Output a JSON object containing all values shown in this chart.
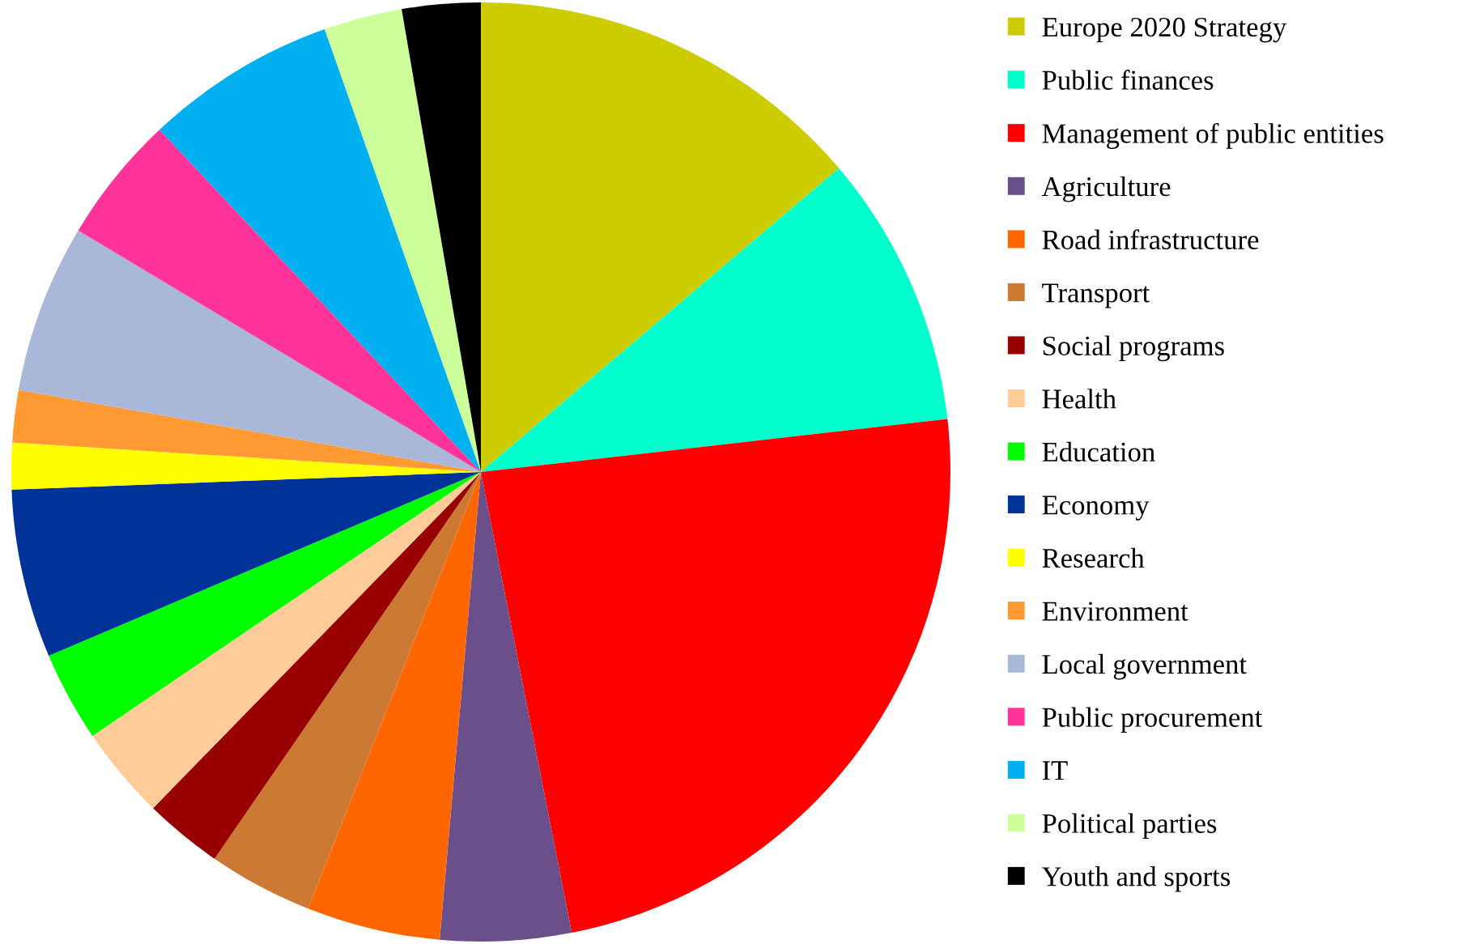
{
  "chart_data": {
    "type": "pie",
    "categories": [
      "Europe 2020 Strategy",
      "Public finances",
      "Management of public entities",
      "Agriculture",
      "Road infrastructure",
      "Transport",
      "Social programs",
      "Health",
      "Education",
      "Economy",
      "Research",
      "Environment",
      "Local government",
      "Public procurement",
      "IT",
      "Political parties",
      "Youth and sports"
    ],
    "values": [
      13.8,
      9.4,
      23.7,
      4.5,
      4.6,
      3.6,
      2.7,
      3.2,
      3.1,
      5.8,
      1.6,
      1.8,
      5.8,
      4.4,
      6.6,
      2.7,
      2.7
    ],
    "colors": [
      "#cccc00",
      "#00ffcc",
      "#ff0000",
      "#6a4f8a",
      "#ff6600",
      "#cc7a33",
      "#990000",
      "#ffcc99",
      "#00ff00",
      "#003399",
      "#ffff00",
      "#ff9933",
      "#a9b8d8",
      "#ff3399",
      "#00b0f0",
      "#ccff99",
      "#000000"
    ],
    "legend": "right"
  }
}
